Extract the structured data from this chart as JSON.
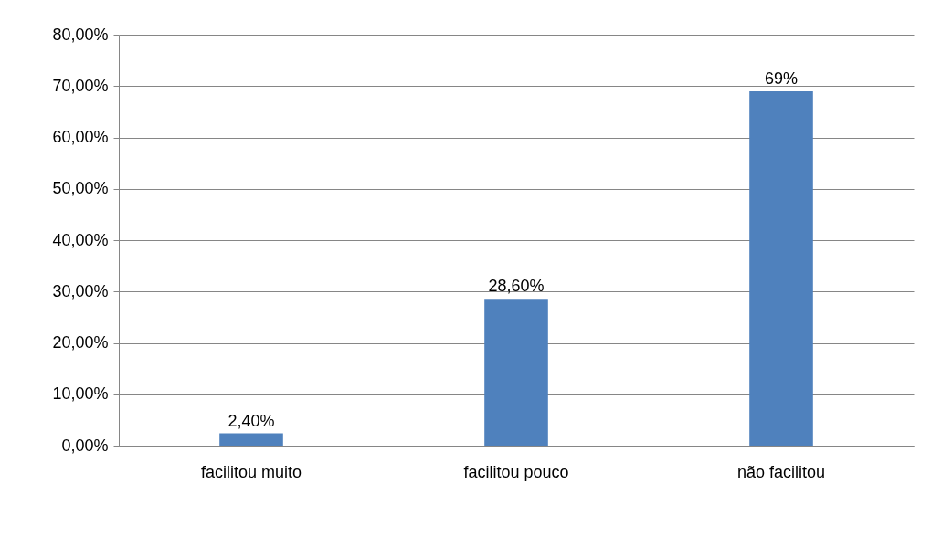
{
  "chart_data": {
    "type": "bar",
    "categories": [
      "facilitou muito",
      "facilitou pouco",
      "não facilitou"
    ],
    "values": [
      2.4,
      28.6,
      69
    ],
    "value_labels": [
      "2,40%",
      "28,60%",
      "69%"
    ],
    "color": "#4f81bd",
    "ylim": [
      0,
      80
    ],
    "yticks": [
      {
        "value": 0,
        "label": "0,00%"
      },
      {
        "value": 10,
        "label": "10,00%"
      },
      {
        "value": 20,
        "label": "20,00%"
      },
      {
        "value": 30,
        "label": "30,00%"
      },
      {
        "value": 40,
        "label": "40,00%"
      },
      {
        "value": 50,
        "label": "50,00%"
      },
      {
        "value": 60,
        "label": "60,00%"
      },
      {
        "value": 70,
        "label": "70,00%"
      },
      {
        "value": 80,
        "label": "80,00%"
      }
    ],
    "grid": "y"
  }
}
